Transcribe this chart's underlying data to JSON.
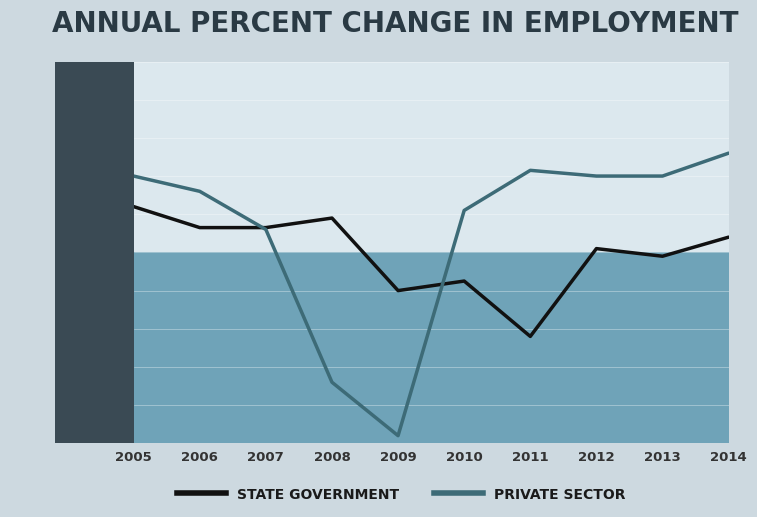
{
  "title": "ANNUAL PERCENT CHANGE IN EMPLOYMENT",
  "years": [
    2005,
    2006,
    2007,
    2008,
    2009,
    2010,
    2011,
    2012,
    2013,
    2014
  ],
  "state_gov": [
    1.2,
    0.65,
    0.65,
    0.9,
    -1.0,
    -0.75,
    -2.2,
    0.1,
    -0.1,
    0.4
  ],
  "private_sector": [
    2.0,
    1.6,
    0.6,
    -3.4,
    -4.8,
    1.1,
    2.15,
    2.0,
    2.0,
    2.6
  ],
  "ylim": [
    -5.0,
    5.0
  ],
  "yticks": [
    -5.0,
    -4.0,
    -3.0,
    -2.0,
    -1.0,
    0.0,
    1.0,
    2.0,
    3.0,
    4.0,
    5.0
  ],
  "fig_bg_color": "#cdd9e0",
  "yaxis_bg_color": "#3a4a54",
  "plot_bg_above": "#dce8ee",
  "plot_bg_below": "#6fa3b8",
  "state_gov_color": "#111111",
  "private_sector_color": "#3d6b77",
  "title_color": "#2a3a44",
  "tick_color_y": "#cdd9e0",
  "tick_color_x": "#333333",
  "legend_label_state": "STATE GOVERNMENT",
  "legend_label_private": "PRIVATE SECTOR",
  "line_width": 2.5,
  "title_fontsize": 20
}
